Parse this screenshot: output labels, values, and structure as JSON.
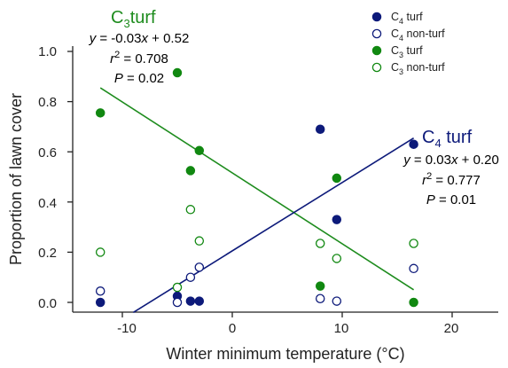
{
  "chart_data": {
    "type": "scatter",
    "xlabel": "Winter minimum temperature (°C)",
    "ylabel": "Proportion of lawn cover",
    "xlim": [
      -16,
      20
    ],
    "ylim": [
      -0.04,
      1.0
    ],
    "xticks": [
      "-10",
      "0",
      "10",
      "20"
    ],
    "yticks": [
      "0.0",
      "0.2",
      "0.4",
      "0.6",
      "0.8",
      "1.0"
    ],
    "grid": false,
    "legend_position": "top-right",
    "legend": [
      {
        "base": "C",
        "sub": "4",
        "rest": " turf"
      },
      {
        "base": "C",
        "sub": "4",
        "rest": " non-turf"
      },
      {
        "base": "C",
        "sub": "3",
        "rest": " turf"
      },
      {
        "base": "C",
        "sub": "3",
        "rest": " non-turf"
      }
    ],
    "series": [
      {
        "key": "c4-turf",
        "color": "#0d1a7a",
        "filled": true,
        "points": [
          [
            -12,
            0.0
          ],
          [
            -5,
            0.025
          ],
          [
            -3.8,
            0.005
          ],
          [
            -3,
            0.005
          ],
          [
            8,
            0.69
          ],
          [
            9.5,
            0.33
          ],
          [
            16.5,
            0.63
          ]
        ]
      },
      {
        "key": "c4-nonturf",
        "color": "#0d1a7a",
        "filled": false,
        "points": [
          [
            -12,
            0.045
          ],
          [
            -5,
            0.0
          ],
          [
            -3.8,
            0.1
          ],
          [
            -3,
            0.14
          ],
          [
            8,
            0.015
          ],
          [
            9.5,
            0.005
          ],
          [
            16.5,
            0.135
          ]
        ]
      },
      {
        "key": "c3-turf",
        "color": "#118811",
        "filled": true,
        "points": [
          [
            -12,
            0.755
          ],
          [
            -5,
            0.915
          ],
          [
            -3.8,
            0.525
          ],
          [
            -3,
            0.605
          ],
          [
            8,
            0.065
          ],
          [
            9.5,
            0.495
          ],
          [
            16.5,
            0.0
          ]
        ]
      },
      {
        "key": "c3-nonturf",
        "color": "#118811",
        "filled": false,
        "points": [
          [
            -12,
            0.2
          ],
          [
            -5,
            0.06
          ],
          [
            -3.8,
            0.37
          ],
          [
            -3,
            0.245
          ],
          [
            8,
            0.235
          ],
          [
            9.5,
            0.175
          ],
          [
            16.5,
            0.235
          ]
        ]
      }
    ],
    "fits": [
      {
        "key": "c3-fit",
        "color": "#1e8c1e",
        "x": [
          -12,
          16.5
        ],
        "y": [
          0.855,
          0.05
        ]
      },
      {
        "key": "c4-fit",
        "color": "#0d1a7a",
        "x": [
          -9,
          16.5
        ],
        "y": [
          -0.04,
          0.655
        ]
      }
    ],
    "annotations": {
      "c3": {
        "color": "#1e8c1e",
        "title_base": "C",
        "title_sub": "3",
        "title_rest": "turf",
        "eq_prefix": "y",
        "eq_mid": " = -0.03",
        "eq_x": "x",
        "eq_suffix": " + 0.52",
        "r_letter": "r",
        "r_sup": "2",
        "r_value": " = 0.708",
        "p_letter": "P",
        "p_value": " = 0.02"
      },
      "c4": {
        "color": "#0d1a7a",
        "title_base": "C",
        "title_sub": "4",
        "title_rest": " turf",
        "eq_prefix": "y",
        "eq_mid": " = 0.03",
        "eq_x": "x",
        "eq_suffix": " + 0.20",
        "r_letter": "r",
        "r_sup": "2",
        "r_value": " = 0.777",
        "p_letter": "P",
        "p_value": " = 0.01"
      }
    }
  }
}
